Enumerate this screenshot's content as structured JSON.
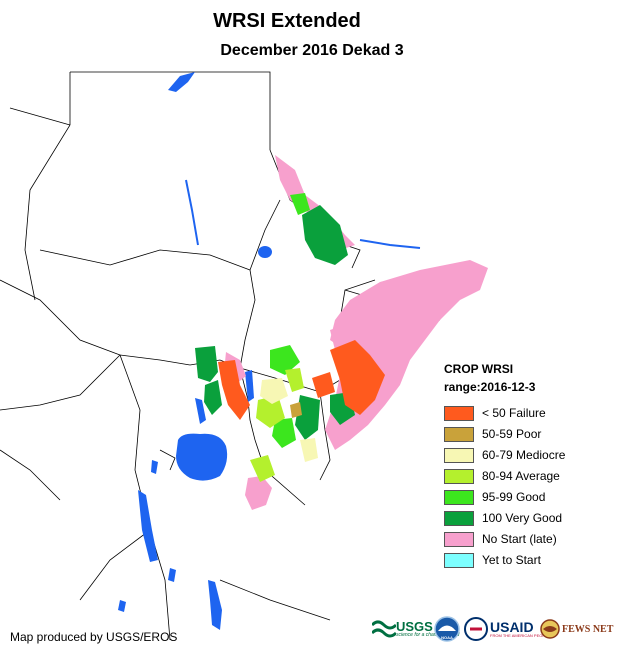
{
  "title": "WRSI Extended",
  "subtitle": "December 2016 Dekad 3",
  "legend": {
    "title": "CROP WRSI",
    "range": "range:2016-12-3",
    "items": [
      {
        "label": "< 50  Failure",
        "color": "#ff5a1e"
      },
      {
        "label": "50-59 Poor",
        "color": "#c9a23a"
      },
      {
        "label": "60-79 Mediocre",
        "color": "#f7f7b4"
      },
      {
        "label": "80-94 Average",
        "color": "#b4f02d"
      },
      {
        "label": "95-99 Good",
        "color": "#3ce61e"
      },
      {
        "label": "100 Very Good",
        "color": "#0aa03c"
      },
      {
        "label": "No Start (late)",
        "color": "#f7a0cd"
      },
      {
        "label": "Yet to Start",
        "color": "#7dffff"
      }
    ]
  },
  "credit": "Map produced by USGS/EROS",
  "logos": {
    "usgs": "USGS",
    "usgs_tagline": "science for a changing world",
    "noaa": "NOAA",
    "usaid": "USAID",
    "usaid_tagline": "FROM THE AMERICAN PEOPLE",
    "fewsnet": "FEWS NET"
  },
  "colors": {
    "water": "#1e64f0",
    "land": "#ffffff",
    "border": "#000000"
  }
}
